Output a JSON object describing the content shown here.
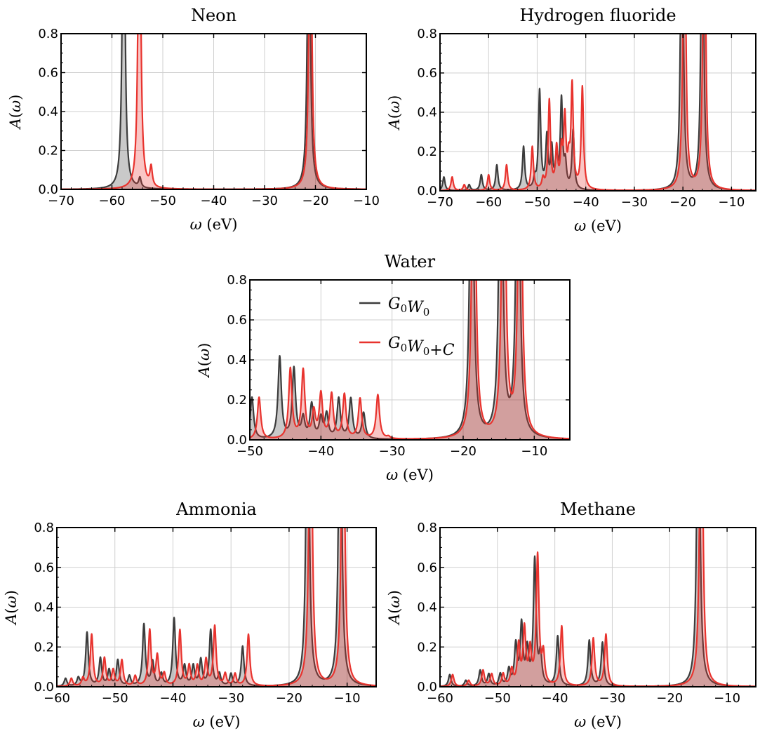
{
  "figure": {
    "legend": {
      "entries": [
        "G0W0",
        "G0W0+C"
      ],
      "placement": "top-center of Water panel"
    }
  },
  "chart_data": [
    {
      "type": "area",
      "title": "Neon",
      "xlabel": "ω (eV)",
      "ylabel": "A(ω)",
      "xlim": [
        -70,
        -10
      ],
      "ylim": [
        0,
        0.8
      ],
      "xticks": [
        -70,
        -60,
        -50,
        -40,
        -30,
        -20,
        -10
      ],
      "yticks": [
        0.0,
        0.2,
        0.4,
        0.6,
        0.8
      ],
      "grid": true,
      "series": [
        {
          "name": "G0W0",
          "color": "#3c3c3c",
          "peaks": [
            [
              -57.7,
              2.0
            ],
            [
              -54.5,
              0.05
            ],
            [
              -21.3,
              2.0
            ]
          ]
        },
        {
          "name": "G0W0+C",
          "color": "#e8332e",
          "peaks": [
            [
              -54.6,
              2.0
            ],
            [
              -52.3,
              0.1
            ],
            [
              -21.0,
              2.0
            ]
          ]
        }
      ]
    },
    {
      "type": "area",
      "title": "Hydrogen fluoride",
      "xlabel": "ω (eV)",
      "ylabel": "A(ω)",
      "xlim": [
        -70,
        -5
      ],
      "ylim": [
        0,
        0.8
      ],
      "xticks": [
        -70,
        -60,
        -50,
        -40,
        -30,
        -20,
        -10
      ],
      "yticks": [
        0.0,
        0.2,
        0.4,
        0.6,
        0.8
      ],
      "grid": true,
      "series": [
        {
          "name": "G0W0",
          "color": "#3c3c3c",
          "peaks": [
            [
              -69.2,
              0.07
            ],
            [
              -64.0,
              0.03
            ],
            [
              -61.5,
              0.08
            ],
            [
              -58.3,
              0.13
            ],
            [
              -52.8,
              0.22
            ],
            [
              -50.5,
              0.05
            ],
            [
              -49.5,
              0.5
            ],
            [
              -48.0,
              0.26
            ],
            [
              -47.0,
              0.2
            ],
            [
              -46.0,
              0.16
            ],
            [
              -45.0,
              0.45
            ],
            [
              -44.2,
              0.12
            ],
            [
              -42.6,
              0.3
            ],
            [
              -20.2,
              2.0
            ],
            [
              -16.0,
              2.0
            ]
          ]
        },
        {
          "name": "G0W0+C",
          "color": "#e8332e",
          "peaks": [
            [
              -67.5,
              0.07
            ],
            [
              -65.0,
              0.03
            ],
            [
              -60.0,
              0.08
            ],
            [
              -56.3,
              0.13
            ],
            [
              -51.0,
              0.22
            ],
            [
              -48.8,
              0.05
            ],
            [
              -47.5,
              0.45
            ],
            [
              -46.0,
              0.2
            ],
            [
              -45.0,
              0.18
            ],
            [
              -44.3,
              0.35
            ],
            [
              -43.5,
              0.12
            ],
            [
              -42.8,
              0.52
            ],
            [
              -40.7,
              0.52
            ],
            [
              -19.7,
              2.0
            ],
            [
              -15.6,
              2.0
            ]
          ]
        }
      ]
    },
    {
      "type": "area",
      "title": "Water",
      "xlabel": "ω (eV)",
      "ylabel": "A(ω)",
      "xlim": [
        -50,
        -5
      ],
      "ylim": [
        0,
        0.8
      ],
      "xticks": [
        -50,
        -40,
        -30,
        -20,
        -10
      ],
      "yticks": [
        0.0,
        0.2,
        0.4,
        0.6,
        0.8
      ],
      "grid": true,
      "series": [
        {
          "name": "G0W0",
          "color": "#3c3c3c",
          "peaks": [
            [
              -49.7,
              0.21
            ],
            [
              -45.8,
              0.41
            ],
            [
              -43.8,
              0.35
            ],
            [
              -42.5,
              0.1
            ],
            [
              -41.3,
              0.17
            ],
            [
              -40.0,
              0.1
            ],
            [
              -39.2,
              0.12
            ],
            [
              -37.5,
              0.2
            ],
            [
              -35.8,
              0.2
            ],
            [
              -34.0,
              0.13
            ],
            [
              -18.8,
              2.0
            ],
            [
              -14.7,
              2.0
            ],
            [
              -12.3,
              2.0
            ]
          ]
        },
        {
          "name": "G0W0+C",
          "color": "#e8332e",
          "peaks": [
            [
              -48.7,
              0.21
            ],
            [
              -44.3,
              0.35
            ],
            [
              -42.5,
              0.34
            ],
            [
              -41.0,
              0.13
            ],
            [
              -40.0,
              0.22
            ],
            [
              -38.5,
              0.22
            ],
            [
              -36.7,
              0.22
            ],
            [
              -34.5,
              0.2
            ],
            [
              -32.0,
              0.22
            ],
            [
              -30.5,
              0.01
            ],
            [
              -18.5,
              2.0
            ],
            [
              -14.3,
              2.0
            ],
            [
              -12.0,
              2.0
            ]
          ]
        }
      ]
    },
    {
      "type": "area",
      "title": "Ammonia",
      "xlabel": "ω (eV)",
      "ylabel": "A(ω)",
      "xlim": [
        -60,
        -5
      ],
      "ylim": [
        0,
        0.8
      ],
      "xticks": [
        -60,
        -50,
        -40,
        -30,
        -20,
        -10
      ],
      "yticks": [
        0.0,
        0.2,
        0.4,
        0.6,
        0.8
      ],
      "grid": true,
      "series": [
        {
          "name": "G0W0",
          "color": "#3c3c3c",
          "peaks": [
            [
              -58.5,
              0.04
            ],
            [
              -56.3,
              0.04
            ],
            [
              -54.8,
              0.27
            ],
            [
              -52.5,
              0.14
            ],
            [
              -51.0,
              0.08
            ],
            [
              -49.5,
              0.13
            ],
            [
              -47.5,
              0.05
            ],
            [
              -45.0,
              0.31
            ],
            [
              -43.5,
              0.12
            ],
            [
              -42.0,
              0.06
            ],
            [
              -39.8,
              0.34
            ],
            [
              -38.0,
              0.1
            ],
            [
              -36.5,
              0.1
            ],
            [
              -35.2,
              0.13
            ],
            [
              -33.5,
              0.28
            ],
            [
              -32.0,
              0.06
            ],
            [
              -30.0,
              0.06
            ],
            [
              -28.0,
              0.2
            ],
            [
              -16.8,
              2.0
            ],
            [
              -11.2,
              2.0
            ]
          ]
        },
        {
          "name": "G0W0+C",
          "color": "#e8332e",
          "peaks": [
            [
              -57.5,
              0.04
            ],
            [
              -55.5,
              0.04
            ],
            [
              -54.0,
              0.26
            ],
            [
              -51.8,
              0.14
            ],
            [
              -50.3,
              0.08
            ],
            [
              -48.8,
              0.13
            ],
            [
              -46.5,
              0.05
            ],
            [
              -44.0,
              0.28
            ],
            [
              -42.7,
              0.15
            ],
            [
              -41.5,
              0.06
            ],
            [
              -38.8,
              0.28
            ],
            [
              -37.2,
              0.1
            ],
            [
              -35.8,
              0.1
            ],
            [
              -34.3,
              0.13
            ],
            [
              -32.8,
              0.3
            ],
            [
              -31.0,
              0.06
            ],
            [
              -29.3,
              0.06
            ],
            [
              -27.0,
              0.26
            ],
            [
              -16.3,
              2.0
            ],
            [
              -10.7,
              2.0
            ]
          ]
        }
      ]
    },
    {
      "type": "area",
      "title": "Methane",
      "xlabel": "ω (eV)",
      "ylabel": "A(ω)",
      "xlim": [
        -60,
        -5
      ],
      "ylim": [
        0,
        0.8
      ],
      "xticks": [
        -60,
        -50,
        -40,
        -30,
        -20,
        -10
      ],
      "yticks": [
        0.0,
        0.2,
        0.4,
        0.6,
        0.8
      ],
      "grid": true,
      "series": [
        {
          "name": "G0W0",
          "color": "#3c3c3c",
          "peaks": [
            [
              -58.3,
              0.06
            ],
            [
              -55.5,
              0.03
            ],
            [
              -53.0,
              0.08
            ],
            [
              -51.5,
              0.06
            ],
            [
              -49.5,
              0.06
            ],
            [
              -48.0,
              0.08
            ],
            [
              -46.8,
              0.2
            ],
            [
              -45.8,
              0.3
            ],
            [
              -44.8,
              0.17
            ],
            [
              -43.5,
              0.63
            ],
            [
              -42.5,
              0.15
            ],
            [
              -39.5,
              0.25
            ],
            [
              -34.0,
              0.23
            ],
            [
              -31.7,
              0.22
            ],
            [
              -15.0,
              2.0
            ]
          ]
        },
        {
          "name": "G0W0+C",
          "color": "#e8332e",
          "peaks": [
            [
              -57.8,
              0.06
            ],
            [
              -55.0,
              0.03
            ],
            [
              -52.5,
              0.08
            ],
            [
              -51.0,
              0.06
            ],
            [
              -49.0,
              0.06
            ],
            [
              -47.5,
              0.08
            ],
            [
              -46.3,
              0.2
            ],
            [
              -45.3,
              0.28
            ],
            [
              -44.3,
              0.17
            ],
            [
              -43.0,
              0.65
            ],
            [
              -42.0,
              0.15
            ],
            [
              -38.8,
              0.3
            ],
            [
              -33.3,
              0.24
            ],
            [
              -31.1,
              0.26
            ],
            [
              -14.5,
              2.0
            ]
          ]
        }
      ]
    }
  ]
}
